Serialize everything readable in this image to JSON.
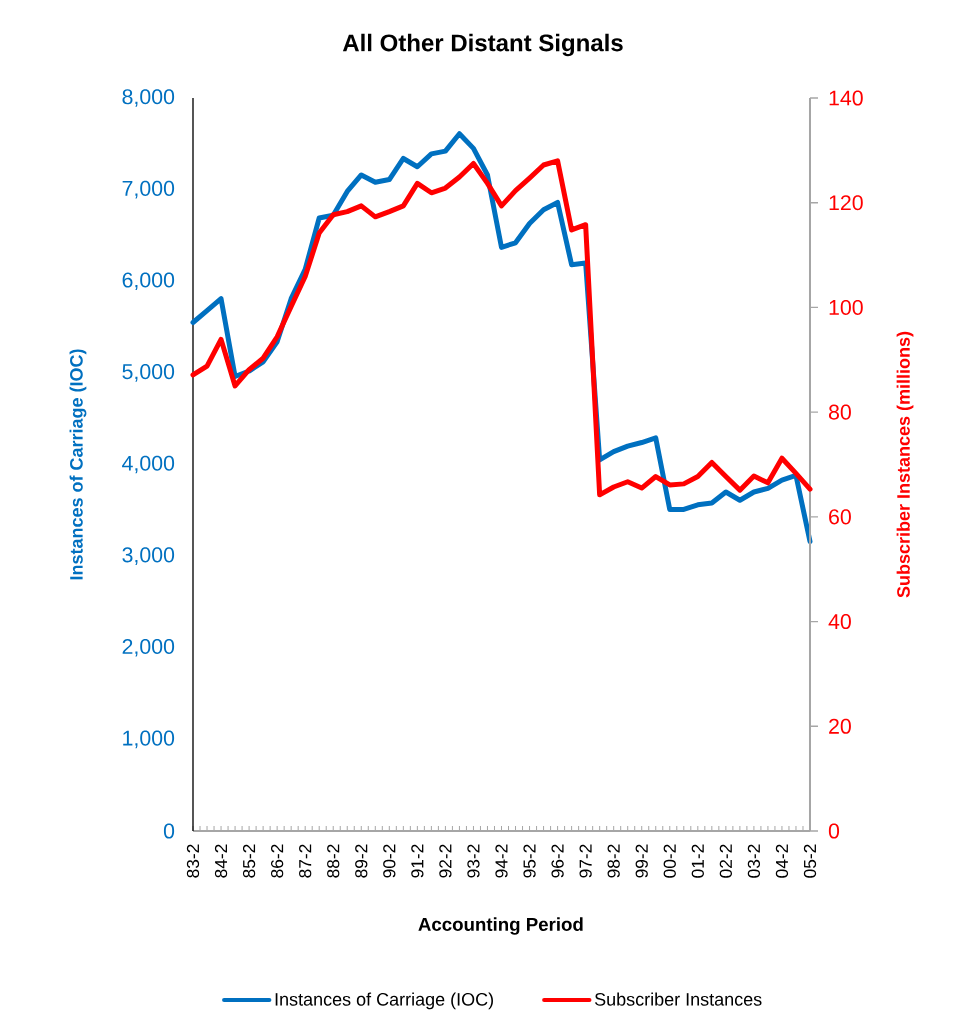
{
  "chart_data": {
    "type": "line",
    "title": "All Other Distant Signals",
    "xlabel": "Accounting Period",
    "ylabel": "Instances of Carriage (IOC)",
    "y2label": "Subscriber Instances (millions)",
    "categories": [
      "83-2",
      null,
      "84-2",
      null,
      "85-2",
      null,
      "86-2",
      null,
      "87-2",
      null,
      "88-2",
      null,
      "89-2",
      null,
      "90-2",
      null,
      "91-2",
      null,
      "92-2",
      null,
      "93-2",
      null,
      "94-2",
      null,
      "95-2",
      null,
      "96-2",
      null,
      "97-2",
      null,
      "98-2",
      null,
      "99-2",
      null,
      "00-2",
      null,
      "01-2",
      null,
      "02-2",
      null,
      "03-2",
      null,
      "04-2",
      null,
      "05-2"
    ],
    "series": [
      {
        "name": "Instances of Carriage (IOC)",
        "color": "#0070c0",
        "values": [
          5550,
          5680,
          5810,
          4960,
          5020,
          5120,
          5340,
          5810,
          6130,
          6690,
          6720,
          6980,
          7160,
          7080,
          7110,
          7340,
          7250,
          7390,
          7420,
          7610,
          7450,
          7160,
          6370,
          6420,
          6630,
          6780,
          6860,
          6180,
          6200,
          4050,
          4140,
          4200,
          4240,
          4290,
          3510,
          3510,
          3560,
          3580,
          3700,
          3610,
          3700,
          3740,
          3830,
          3880,
          3160
        ]
      },
      {
        "name": "Subscriber Instances",
        "color": "#ff0000",
        "axis": "y2",
        "values": [
          87.1,
          88.8,
          93.9,
          85.0,
          88.1,
          90.3,
          94.4,
          100.2,
          105.9,
          114.2,
          117.7,
          118.3,
          119.4,
          117.3,
          118.3,
          119.4,
          123.7,
          121.9,
          122.8,
          124.9,
          127.5,
          123.7,
          119.4,
          122.3,
          124.7,
          127.2,
          128.0,
          114.8,
          115.8,
          64.2,
          65.7,
          66.7,
          65.5,
          67.7,
          66.1,
          66.3,
          67.7,
          70.4,
          67.7,
          65.1,
          67.8,
          66.5,
          71.2,
          68.3,
          65.3
        ]
      }
    ],
    "ylim": [
      0,
      8000
    ],
    "yticks": [
      0,
      {
        "value": 1000,
        "label": "1,000"
      },
      {
        "value": 2000,
        "label": "2,000"
      },
      {
        "value": 3000,
        "label": "3,000"
      },
      {
        "value": 4000,
        "label": "4,000"
      },
      {
        "value": 5000,
        "label": "5,000"
      },
      {
        "value": 6000,
        "label": "6,000"
      },
      {
        "value": 7000,
        "label": "7,000"
      },
      {
        "value": 8000,
        "label": "8,000"
      }
    ],
    "y2lim": [
      0,
      140
    ],
    "y2ticks": [
      0,
      20,
      40,
      60,
      80,
      100,
      120,
      140
    ],
    "legend": "bottom"
  }
}
